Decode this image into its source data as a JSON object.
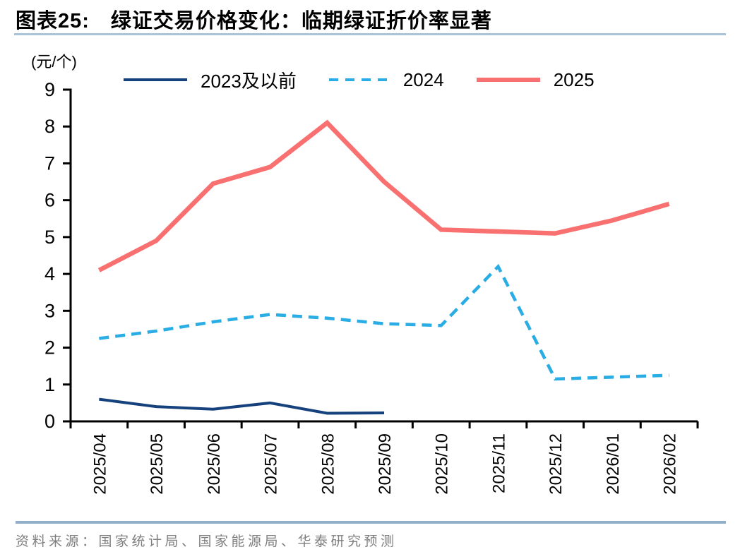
{
  "header": {
    "title_prefix": "图表25:",
    "title_text": "绿证交易价格变化：临期绿证折价率显著"
  },
  "colors": {
    "navy": "#15427C",
    "sky": "#29ADE4",
    "red": "#F87070",
    "axis": "#000000",
    "rule_top": "#A9C3D9",
    "rule_bottom": "#92AEC8"
  },
  "chart_data": {
    "type": "line",
    "unit_label": "(元/个)",
    "categories": [
      "2025/04",
      "2025/05",
      "2025/06",
      "2025/07",
      "2025/08",
      "2025/09",
      "2025/10",
      "2025/11",
      "2025/12",
      "2026/01",
      "2026/02"
    ],
    "series": [
      {
        "name": "2023及以前",
        "color_key": "navy",
        "style": "solid",
        "width": 4,
        "values": [
          0.6,
          0.4,
          0.33,
          0.5,
          0.22,
          0.23,
          null,
          null,
          null,
          null,
          null
        ]
      },
      {
        "name": "2024",
        "color_key": "sky",
        "style": "dashed",
        "width": 4.5,
        "dash": "14 9",
        "values": [
          2.25,
          2.45,
          2.7,
          2.9,
          2.8,
          2.65,
          2.6,
          4.2,
          1.15,
          1.2,
          1.25
        ]
      },
      {
        "name": "2025",
        "color_key": "red",
        "style": "solid",
        "width": 6.5,
        "values": [
          4.1,
          4.9,
          6.45,
          6.9,
          8.1,
          6.5,
          5.2,
          5.15,
          5.1,
          5.45,
          5.9
        ]
      }
    ],
    "ylim": [
      0,
      9
    ],
    "yticks": [
      0,
      1,
      2,
      3,
      4,
      5,
      6,
      7,
      8,
      9
    ],
    "grid": false,
    "legend_position": "top"
  },
  "footer": {
    "source": "资料来源：国家统计局、国家能源局、华泰研究预测"
  }
}
